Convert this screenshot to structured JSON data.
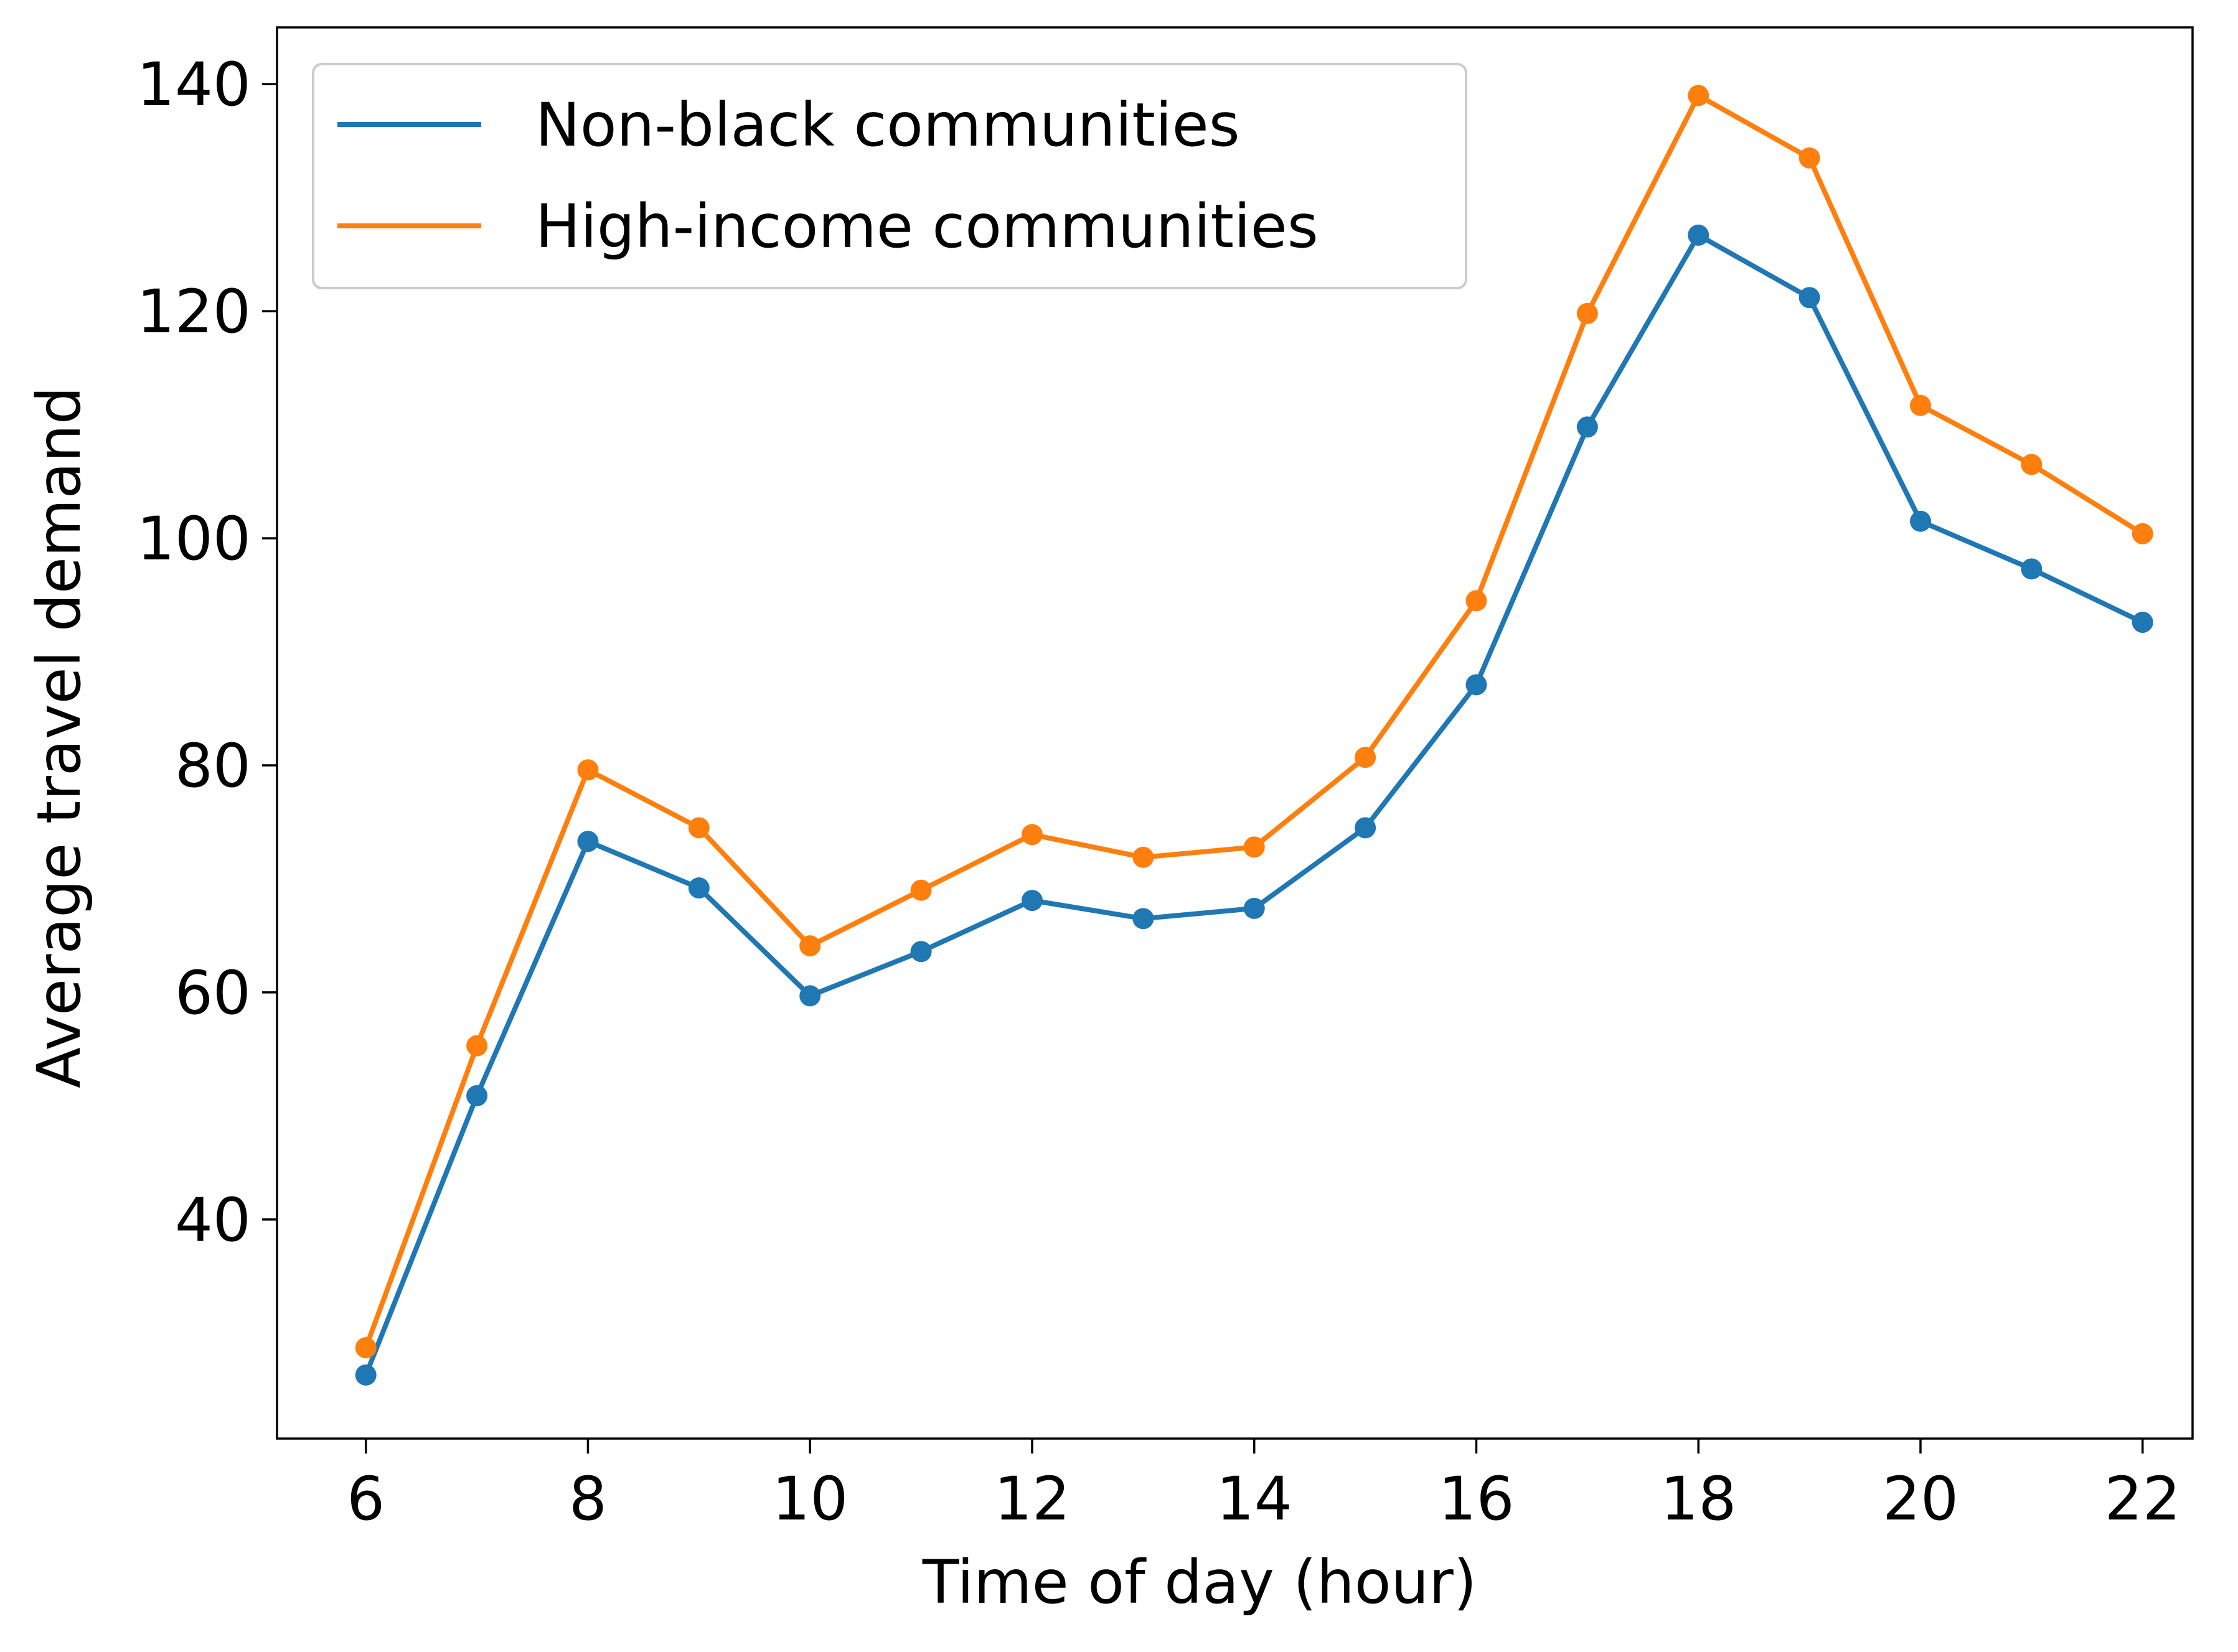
{
  "chart_data": {
    "type": "line",
    "title": "",
    "xlabel": "Time of day (hour)",
    "ylabel": "Average travel demand",
    "x": [
      6,
      7,
      8,
      9,
      10,
      11,
      12,
      13,
      14,
      15,
      16,
      17,
      18,
      19,
      20,
      21,
      22
    ],
    "xticks": [
      "6",
      "8",
      "10",
      "12",
      "14",
      "16",
      "18",
      "20",
      "22"
    ],
    "yticks": [
      "40",
      "60",
      "80",
      "100",
      "120",
      "140"
    ],
    "xlim": [
      5.2,
      22.45
    ],
    "ylim": [
      20.7,
      145.0
    ],
    "grid": false,
    "legend_position": "upper left",
    "series": [
      {
        "name": "Non-black communities",
        "color": "#1f77b4",
        "marker": "circle",
        "values": [
          26.3,
          50.9,
          73.3,
          69.2,
          59.7,
          63.6,
          68.1,
          66.5,
          67.4,
          74.5,
          87.1,
          109.8,
          126.7,
          121.2,
          101.5,
          97.3,
          92.6
        ]
      },
      {
        "name": "High-income communities",
        "color": "#ff7f0e",
        "marker": "circle",
        "values": [
          28.7,
          55.3,
          79.6,
          74.5,
          64.1,
          69.0,
          73.9,
          71.9,
          72.8,
          80.7,
          94.5,
          119.8,
          139.0,
          133.5,
          111.7,
          106.5,
          100.4
        ]
      }
    ]
  }
}
